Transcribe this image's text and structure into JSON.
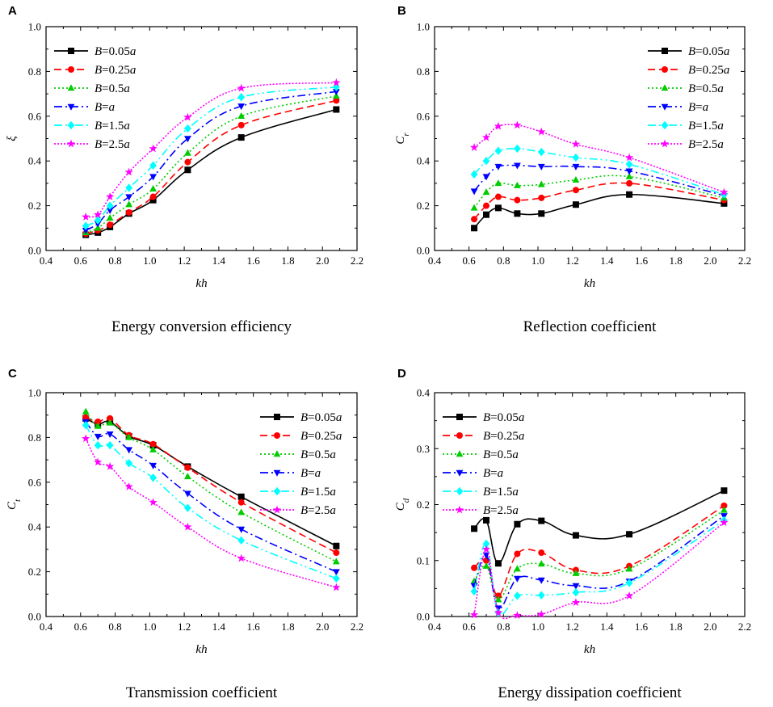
{
  "legend_labels": [
    {
      "pre": "B",
      "mid": "=0.05",
      "post": "a"
    },
    {
      "pre": "B",
      "mid": "=0.25",
      "post": "a"
    },
    {
      "pre": "B",
      "mid": "=0.5",
      "post": "a"
    },
    {
      "pre": "B",
      "mid": "=",
      "post": "a"
    },
    {
      "pre": "B",
      "mid": "=1.5",
      "post": "a"
    },
    {
      "pre": "B",
      "mid": "=2.5",
      "post": "a"
    }
  ],
  "series_styles": [
    {
      "color": "#000000",
      "dash": "",
      "marker": "square"
    },
    {
      "color": "#ff0000",
      "dash": "9,5",
      "marker": "circle"
    },
    {
      "color": "#00cc00",
      "dash": "2,3",
      "marker": "triangle-up"
    },
    {
      "color": "#0000ff",
      "dash": "10,4,2,4",
      "marker": "triangle-down"
    },
    {
      "color": "#00ffff",
      "dash": "10,4,2,4,2,4",
      "marker": "diamond"
    },
    {
      "color": "#ff00ff",
      "dash": "2,2",
      "marker": "star"
    }
  ],
  "chart_data": [
    {
      "panel": "A",
      "type": "line",
      "caption": "Energy conversion efficiency",
      "xlabel": "kh",
      "ylabel": "ξ",
      "xlim": [
        0.4,
        2.2
      ],
      "ylim": [
        0.0,
        1.0
      ],
      "xticks": [
        "0.4",
        "0.6",
        "0.8",
        "1.0",
        "1.2",
        "1.4",
        "1.6",
        "1.8",
        "2.0",
        "2.2"
      ],
      "yticks": [
        "0.0",
        "0.2",
        "0.4",
        "0.6",
        "0.8",
        "1.0"
      ],
      "x": [
        0.63,
        0.7,
        0.77,
        0.88,
        1.02,
        1.22,
        1.53,
        2.08
      ],
      "legend_position": "top-left",
      "series": [
        {
          "name": "B=0.05a",
          "values": [
            0.07,
            0.08,
            0.105,
            0.165,
            0.225,
            0.36,
            0.505,
            0.63
          ]
        },
        {
          "name": "B=0.25a",
          "values": [
            0.075,
            0.09,
            0.115,
            0.17,
            0.24,
            0.395,
            0.56,
            0.67
          ]
        },
        {
          "name": "B=0.5a",
          "values": [
            0.08,
            0.1,
            0.145,
            0.205,
            0.275,
            0.435,
            0.6,
            0.69
          ]
        },
        {
          "name": "B=a",
          "values": [
            0.09,
            0.12,
            0.18,
            0.24,
            0.33,
            0.5,
            0.645,
            0.71
          ]
        },
        {
          "name": "B=1.5a",
          "values": [
            0.11,
            0.135,
            0.2,
            0.28,
            0.38,
            0.545,
            0.685,
            0.73
          ]
        },
        {
          "name": "B=2.5a",
          "values": [
            0.15,
            0.16,
            0.24,
            0.35,
            0.455,
            0.595,
            0.725,
            0.75
          ]
        }
      ]
    },
    {
      "panel": "B",
      "type": "line",
      "caption": "Reflection coefficient",
      "xlabel": "kh",
      "ylabel": "Cr",
      "xlim": [
        0.4,
        2.2
      ],
      "ylim": [
        0.0,
        1.0
      ],
      "xticks": [
        "0.4",
        "0.6",
        "0.8",
        "1.0",
        "1.2",
        "1.4",
        "1.6",
        "1.8",
        "2.0",
        "2.2"
      ],
      "yticks": [
        "0.0",
        "0.2",
        "0.4",
        "0.6",
        "0.8",
        "1.0"
      ],
      "x": [
        0.63,
        0.7,
        0.77,
        0.88,
        1.02,
        1.22,
        1.53,
        2.08
      ],
      "legend_position": "top-right",
      "series": [
        {
          "name": "B=0.05a",
          "values": [
            0.1,
            0.16,
            0.19,
            0.165,
            0.165,
            0.205,
            0.25,
            0.21
          ]
        },
        {
          "name": "B=0.25a",
          "values": [
            0.14,
            0.2,
            0.24,
            0.225,
            0.235,
            0.27,
            0.3,
            0.225
          ]
        },
        {
          "name": "B=0.5a",
          "values": [
            0.19,
            0.26,
            0.3,
            0.29,
            0.295,
            0.315,
            0.33,
            0.235
          ]
        },
        {
          "name": "B=a",
          "values": [
            0.265,
            0.33,
            0.375,
            0.38,
            0.375,
            0.375,
            0.355,
            0.245
          ]
        },
        {
          "name": "B=1.5a",
          "values": [
            0.34,
            0.4,
            0.445,
            0.455,
            0.44,
            0.415,
            0.385,
            0.25
          ]
        },
        {
          "name": "B=2.5a",
          "values": [
            0.46,
            0.505,
            0.555,
            0.56,
            0.53,
            0.475,
            0.415,
            0.26
          ]
        }
      ]
    },
    {
      "panel": "C",
      "type": "line",
      "caption": "Transmission coefficient",
      "xlabel": "kh",
      "ylabel": "Ct",
      "xlim": [
        0.4,
        2.2
      ],
      "ylim": [
        0.0,
        1.0
      ],
      "xticks": [
        "0.4",
        "0.6",
        "0.8",
        "1.0",
        "1.2",
        "1.4",
        "1.6",
        "1.8",
        "2.0",
        "2.2"
      ],
      "yticks": [
        "0.0",
        "0.2",
        "0.4",
        "0.6",
        "0.8",
        "1.0"
      ],
      "x": [
        0.63,
        0.7,
        0.77,
        0.88,
        1.02,
        1.22,
        1.53,
        2.08
      ],
      "legend_position": "top-right",
      "series": [
        {
          "name": "B=0.05a",
          "values": [
            0.885,
            0.86,
            0.87,
            0.805,
            0.765,
            0.67,
            0.535,
            0.315
          ]
        },
        {
          "name": "B=0.25a",
          "values": [
            0.89,
            0.87,
            0.885,
            0.81,
            0.77,
            0.665,
            0.51,
            0.285
          ]
        },
        {
          "name": "B=0.5a",
          "values": [
            0.915,
            0.85,
            0.865,
            0.8,
            0.745,
            0.625,
            0.465,
            0.245
          ]
        },
        {
          "name": "B=a",
          "values": [
            0.87,
            0.805,
            0.815,
            0.745,
            0.675,
            0.55,
            0.39,
            0.2
          ]
        },
        {
          "name": "B=1.5a",
          "values": [
            0.855,
            0.765,
            0.765,
            0.685,
            0.62,
            0.485,
            0.34,
            0.17
          ]
        },
        {
          "name": "B=2.5a",
          "values": [
            0.795,
            0.69,
            0.67,
            0.58,
            0.51,
            0.4,
            0.26,
            0.13
          ]
        }
      ]
    },
    {
      "panel": "D",
      "type": "line",
      "caption": "Energy dissipation coefficient",
      "xlabel": "kh",
      "ylabel": "Cd",
      "xlim": [
        0.4,
        2.2
      ],
      "ylim": [
        0.0,
        0.4
      ],
      "xticks": [
        "0.4",
        "0.6",
        "0.8",
        "1.0",
        "1.2",
        "1.4",
        "1.6",
        "1.8",
        "2.0",
        "2.2"
      ],
      "yticks": [
        "0.0",
        "0.1",
        "0.2",
        "0.3",
        "0.4"
      ],
      "x": [
        0.63,
        0.7,
        0.77,
        0.88,
        1.02,
        1.22,
        1.53,
        2.08
      ],
      "legend_position": "top-left",
      "series": [
        {
          "name": "B=0.05a",
          "values": [
            0.157,
            0.172,
            0.095,
            0.165,
            0.171,
            0.145,
            0.147,
            0.225
          ]
        },
        {
          "name": "B=0.25a",
          "values": [
            0.087,
            0.1,
            0.037,
            0.112,
            0.114,
            0.083,
            0.09,
            0.198
          ]
        },
        {
          "name": "B=0.5a",
          "values": [
            0.063,
            0.09,
            0.03,
            0.085,
            0.094,
            0.077,
            0.085,
            0.19
          ]
        },
        {
          "name": "B=a",
          "values": [
            0.055,
            0.11,
            0.015,
            0.068,
            0.065,
            0.055,
            0.063,
            0.18
          ]
        },
        {
          "name": "B=1.5a",
          "values": [
            0.045,
            0.13,
            0.007,
            0.037,
            0.038,
            0.043,
            0.06,
            0.172
          ]
        },
        {
          "name": "B=2.5a",
          "values": [
            0.003,
            0.12,
            0.007,
            0.002,
            0.004,
            0.025,
            0.037,
            0.168
          ]
        }
      ]
    }
  ]
}
